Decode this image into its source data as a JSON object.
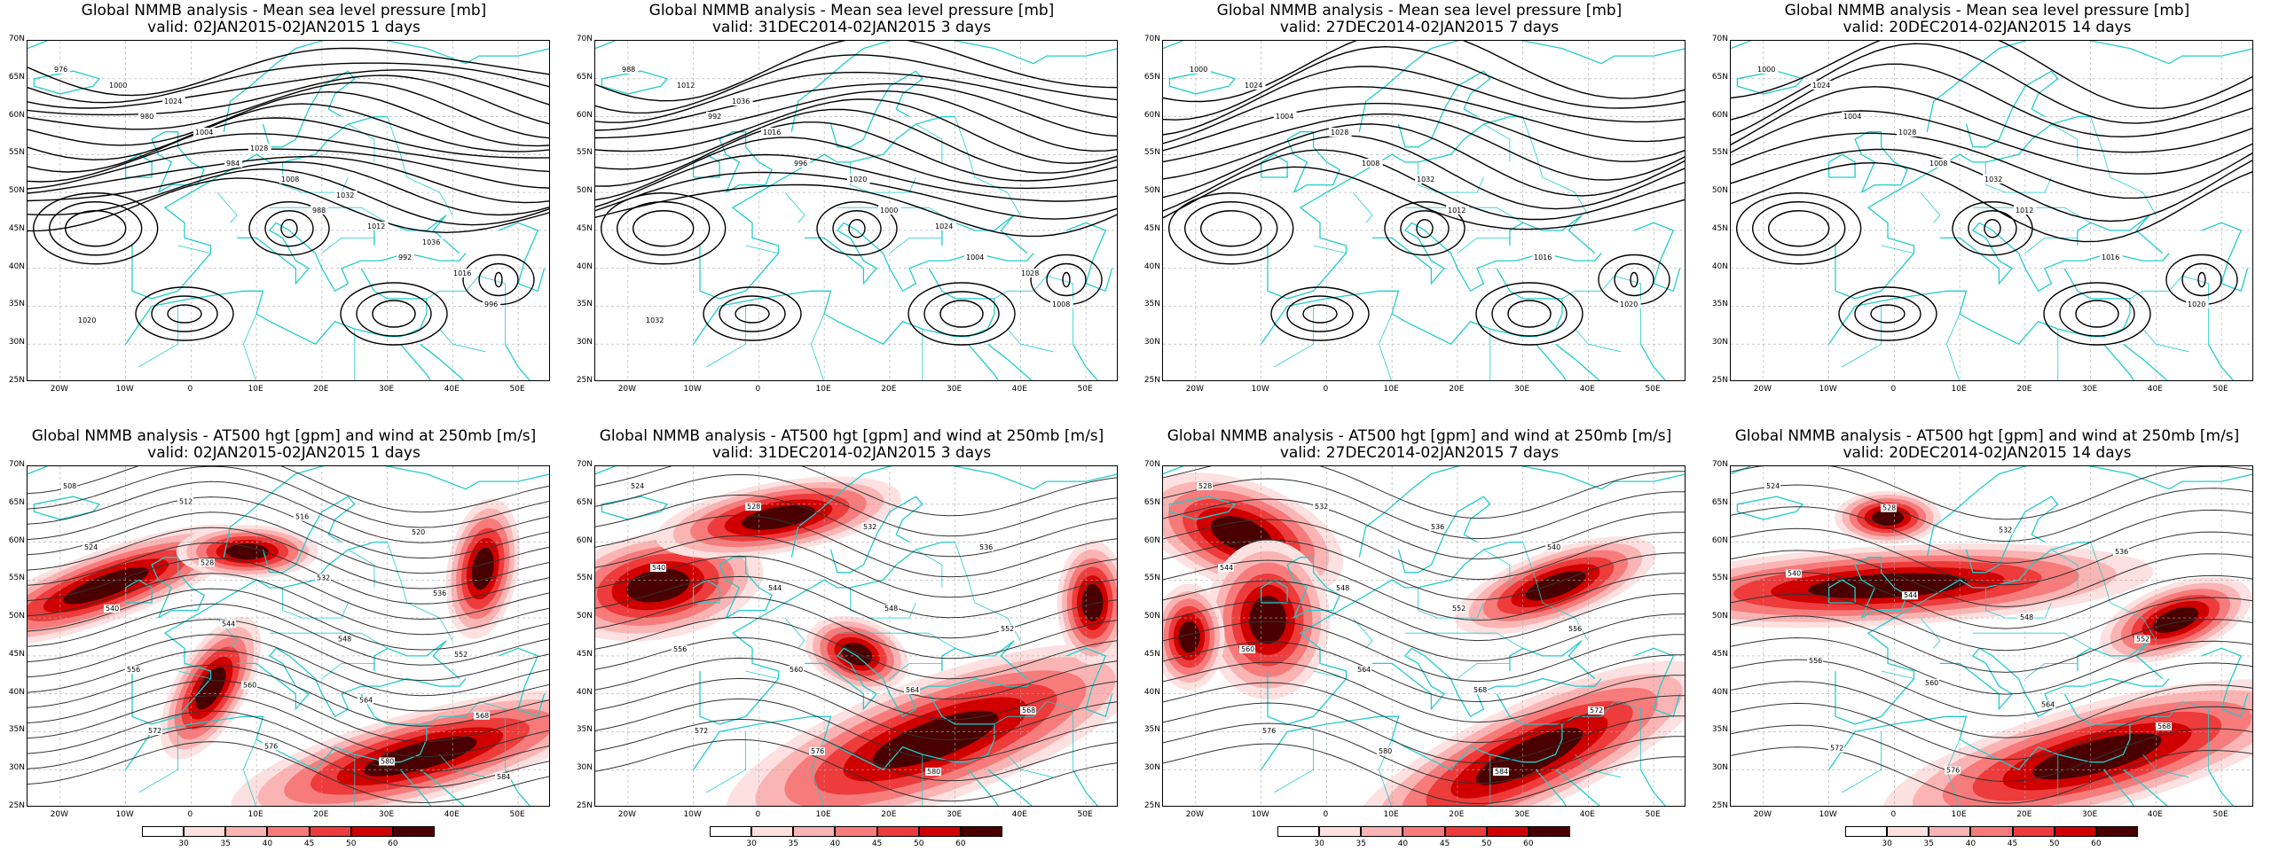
{
  "colors": {
    "coast": "#22cccc",
    "contour": "#000000",
    "grid": "#aaaaaa",
    "wind_levels": [
      "#ffffff",
      "#fde0e0",
      "#fbb4b4",
      "#f77b7b",
      "#ee3b3b",
      "#d00000",
      "#4a0000"
    ]
  },
  "panels": [
    {
      "title1": "Global NMMB analysis - Mean sea level pressure [mb]",
      "title2": "valid: 02JAN2015-02JAN2015   1 days",
      "type": "mslp",
      "labels": [
        "976",
        "980",
        "984",
        "988",
        "992",
        "996",
        "1000",
        "1004",
        "1008",
        "1012",
        "1016",
        "1020",
        "1024",
        "1028",
        "1032",
        "1036"
      ]
    },
    {
      "title1": "Global NMMB analysis - Mean sea level pressure [mb]",
      "title2": "valid: 31DEC2014-02JAN2015   3 days",
      "type": "mslp",
      "labels": [
        "988",
        "992",
        "996",
        "1000",
        "1004",
        "1008",
        "1012",
        "1016",
        "1020",
        "1024",
        "1028",
        "1032",
        "1036"
      ]
    },
    {
      "title1": "Global NMMB analysis - Mean sea level pressure [mb]",
      "title2": "valid: 27DEC2014-02JAN2015   7 days",
      "type": "mslp",
      "labels": [
        "1000",
        "1004",
        "1008",
        "1012",
        "1016",
        "1020",
        "1024",
        "1028",
        "1032"
      ]
    },
    {
      "title1": "Global NMMB analysis - Mean sea level pressure [mb]",
      "title2": "valid: 20DEC2014-02JAN2015   14 days",
      "type": "mslp",
      "labels": [
        "1000",
        "1004",
        "1008",
        "1012",
        "1016",
        "1020",
        "1024",
        "1028",
        "1032"
      ]
    },
    {
      "title1": "Global NMMB analysis - AT500 hgt [gpm] and wind at 250mb [m/s]",
      "title2": "valid: 02JAN2015-02JAN2015   1 days",
      "type": "z500",
      "labels": [
        "508",
        "512",
        "516",
        "520",
        "524",
        "528",
        "532",
        "536",
        "540",
        "544",
        "548",
        "552",
        "556",
        "560",
        "564",
        "568",
        "572",
        "576",
        "580",
        "584"
      ]
    },
    {
      "title1": "Global NMMB analysis - AT500 hgt [gpm] and wind at 250mb [m/s]",
      "title2": "valid: 31DEC2014-02JAN2015   3 days",
      "type": "z500",
      "labels": [
        "524",
        "528",
        "532",
        "536",
        "540",
        "544",
        "548",
        "552",
        "556",
        "560",
        "564",
        "568",
        "572",
        "576",
        "580"
      ]
    },
    {
      "title1": "Global NMMB analysis - AT500 hgt [gpm] and wind at 250mb [m/s]",
      "title2": "valid: 27DEC2014-02JAN2015   7 days",
      "type": "z500",
      "labels": [
        "528",
        "532",
        "536",
        "540",
        "544",
        "548",
        "552",
        "556",
        "560",
        "564",
        "568",
        "572",
        "576",
        "580",
        "584"
      ]
    },
    {
      "title1": "Global NMMB analysis - AT500 hgt [gpm] and wind at 250mb [m/s]",
      "title2": "valid: 20DEC2014-02JAN2015   14 days",
      "type": "z500",
      "labels": [
        "524",
        "528",
        "532",
        "536",
        "540",
        "544",
        "548",
        "552",
        "556",
        "560",
        "564",
        "568",
        "572",
        "576"
      ]
    }
  ],
  "lat_labels": [
    "70N",
    "65N",
    "60N",
    "55N",
    "50N",
    "45N",
    "40N",
    "35N",
    "30N",
    "25N"
  ],
  "lon_labels": [
    "20W",
    "10W",
    "0",
    "10E",
    "20E",
    "30E",
    "40E",
    "50E"
  ],
  "colorbar_labels": [
    "30",
    "35",
    "40",
    "45",
    "50",
    "60"
  ]
}
